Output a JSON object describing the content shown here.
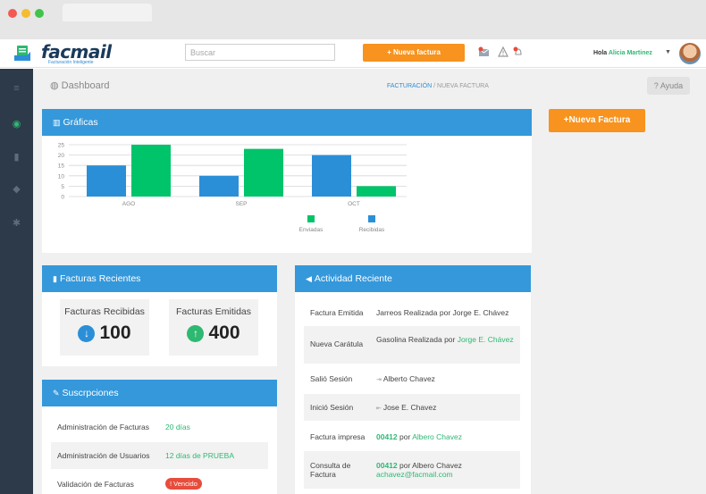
{
  "header": {
    "logo_text": "facmail",
    "logo_tagline": "Facturación Inteligente",
    "search_placeholder": "Buscar",
    "new_invoice_button": "+ Nueva factura",
    "greeting_prefix": "Hola ",
    "user_name": "Alicia Martinez"
  },
  "breadcrumb": {
    "page_title": "Dashboard",
    "section": "FACTURACIÓN",
    "separator": "/",
    "current": "NUEVA FACTURA",
    "help_label": "Ayuda"
  },
  "new_invoice_side_button": "+Nueva Factura",
  "graficas": {
    "title": "Gráficas"
  },
  "chart_data": {
    "type": "bar",
    "categories": [
      "AGO",
      "SEP",
      "OCT"
    ],
    "series": [
      {
        "name": "Recibidas",
        "color": "#2b8fd8",
        "values": [
          15,
          10,
          20
        ]
      },
      {
        "name": "Enviadas",
        "color": "#00c46a",
        "values": [
          25,
          23,
          5
        ]
      }
    ],
    "yticks": [
      0,
      5,
      10,
      15,
      20,
      25
    ],
    "ylim": [
      0,
      25
    ],
    "grid": true,
    "legend_position": "bottom",
    "legend_order": [
      "Enviadas",
      "Recibidas"
    ]
  },
  "recientes": {
    "title": "Facturas Recientes",
    "received_label": "Facturas Recibidas",
    "received_value": "100",
    "issued_label": "Facturas Emitidas",
    "issued_value": "400"
  },
  "actividad": {
    "title": "Actividad Reciente",
    "rows": [
      {
        "key": "Factura Emitida",
        "text": "Jarreos Realizada por Jorge E. Chávez"
      },
      {
        "key": "Nueva Carátula",
        "text": "Gasolina Realizada por ",
        "link": "Jorge E. Chávez"
      },
      {
        "key": "Salió Sesión",
        "icon": "sign-out-icon",
        "text": "Alberto Chavez"
      },
      {
        "key": "Inició Sesión",
        "icon": "sign-in-icon",
        "text": "Jose E. Chavez"
      },
      {
        "key": "Factura impresa",
        "code": "00412",
        "mid": " por ",
        "link": "Albero Chavez"
      },
      {
        "key": "Consulta de Factura",
        "code": "00412",
        "mid": " por Albero Chavez",
        "email": "achavez@facmail.com"
      }
    ]
  },
  "suscripciones": {
    "title": "Suscrpciones",
    "rows": [
      {
        "label": "Administración de Facturas",
        "value": "20 días"
      },
      {
        "label": "Administración de Usuarios",
        "value": "12 días de PRUEBA"
      },
      {
        "label": "Validación de Facturas",
        "badge": "Vencido"
      }
    ]
  },
  "colors": {
    "primary": "#3498db",
    "accent": "#f7931e",
    "green": "#2eb872",
    "sidebar": "#2c3a4a",
    "danger": "#e74c3c"
  }
}
